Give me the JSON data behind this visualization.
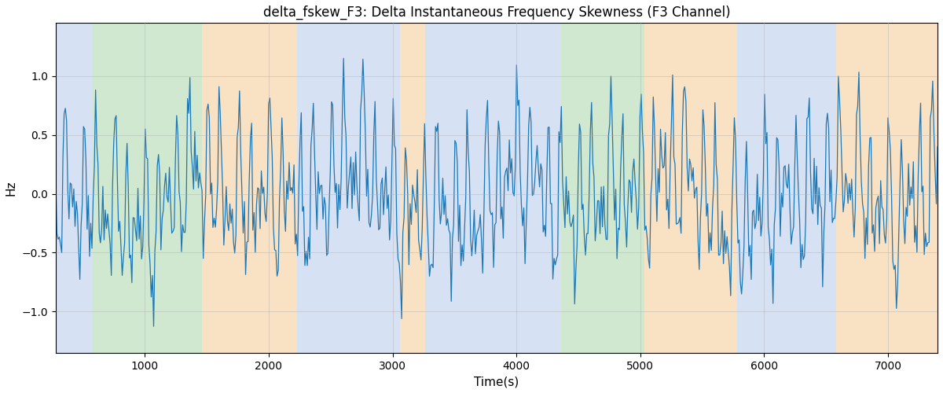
{
  "title": "delta_fskew_F3: Delta Instantaneous Frequency Skewness (F3 Channel)",
  "xlabel": "Time(s)",
  "ylabel": "Hz",
  "xlim": [
    280,
    7400
  ],
  "ylim": [
    -1.35,
    1.45
  ],
  "yticks": [
    -1.0,
    -0.5,
    0.0,
    0.5,
    1.0
  ],
  "xticks": [
    1000,
    2000,
    3000,
    4000,
    5000,
    6000,
    7000
  ],
  "line_color": "#1f77b4",
  "line_width": 0.9,
  "bg_regions": [
    {
      "xstart": 280,
      "xend": 580,
      "color": "#aec6e8",
      "alpha": 0.5
    },
    {
      "xstart": 580,
      "xend": 1460,
      "color": "#90c990",
      "alpha": 0.42
    },
    {
      "xstart": 1460,
      "xend": 2230,
      "color": "#f5c48a",
      "alpha": 0.5
    },
    {
      "xstart": 2230,
      "xend": 3060,
      "color": "#aec6e8",
      "alpha": 0.5
    },
    {
      "xstart": 3060,
      "xend": 3260,
      "color": "#f5c48a",
      "alpha": 0.5
    },
    {
      "xstart": 3260,
      "xend": 4100,
      "color": "#aec6e8",
      "alpha": 0.5
    },
    {
      "xstart": 4100,
      "xend": 4360,
      "color": "#aec6e8",
      "alpha": 0.5
    },
    {
      "xstart": 4360,
      "xend": 5030,
      "color": "#90c990",
      "alpha": 0.42
    },
    {
      "xstart": 5030,
      "xend": 5780,
      "color": "#f5c48a",
      "alpha": 0.5
    },
    {
      "xstart": 5780,
      "xend": 6580,
      "color": "#aec6e8",
      "alpha": 0.5
    },
    {
      "xstart": 6580,
      "xend": 7400,
      "color": "#f5c48a",
      "alpha": 0.5
    }
  ],
  "grid_color": "#b0b0b0",
  "grid_alpha": 0.5,
  "grid_linewidth": 0.6,
  "title_fontsize": 12,
  "axis_label_fontsize": 11,
  "tick_fontsize": 10,
  "seed": 42,
  "t_start": 280,
  "t_end": 7400,
  "n_points": 730
}
